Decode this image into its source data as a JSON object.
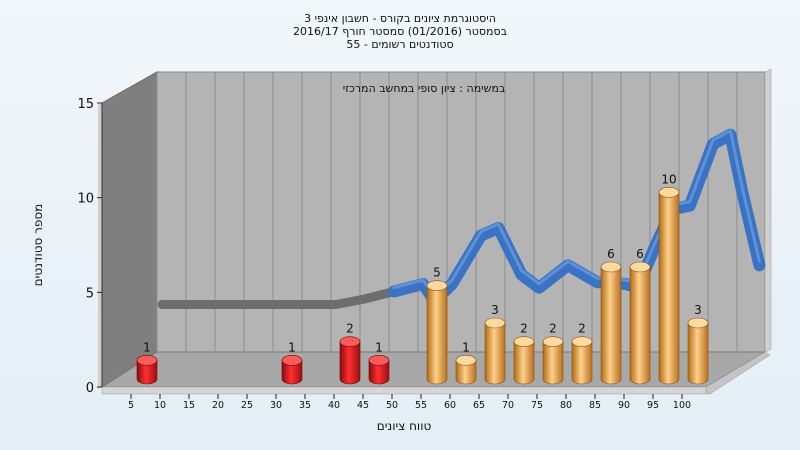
{
  "title_lines": [
    "היסטוגרמת ציונים בקורס - חשבון אינפי 3",
    "בסמסטר  (01/2016)  סמסטר חורף  2016/17",
    "סטודנטים רשומים - 55"
  ],
  "chart_data": {
    "type": "bar",
    "annotation": "במשימה : ציון סופי במחשב המרכזי",
    "xlabel": "טווח ציונים",
    "ylabel": "מספר סטודנטים",
    "ylim": [
      0,
      15
    ],
    "yticks": [
      0,
      5,
      10,
      15
    ],
    "xticks": [
      5,
      10,
      15,
      20,
      25,
      30,
      35,
      40,
      45,
      50,
      55,
      60,
      65,
      70,
      75,
      80,
      85,
      90,
      95,
      100
    ],
    "bars": [
      {
        "x": 5,
        "value": 1,
        "color": "#e02020"
      },
      {
        "x": 30,
        "value": 1,
        "color": "#e02020"
      },
      {
        "x": 40,
        "value": 2,
        "color": "#e02020"
      },
      {
        "x": 45,
        "value": 1,
        "color": "#e02020"
      },
      {
        "x": 55,
        "value": 5,
        "color": "#e8a23c"
      },
      {
        "x": 60,
        "value": 1,
        "color": "#e8a23c"
      },
      {
        "x": 65,
        "value": 3,
        "color": "#e8a23c"
      },
      {
        "x": 70,
        "value": 2,
        "color": "#e8a23c"
      },
      {
        "x": 75,
        "value": 2,
        "color": "#e8a23c"
      },
      {
        "x": 80,
        "value": 2,
        "color": "#e8a23c"
      },
      {
        "x": 85,
        "value": 6,
        "color": "#e8a23c"
      },
      {
        "x": 90,
        "value": 6,
        "color": "#e8a23c"
      },
      {
        "x": 95,
        "value": 10,
        "color": "#e8a23c"
      },
      {
        "x": 100,
        "value": 3,
        "color": "#e8a23c"
      }
    ],
    "curve": [
      {
        "x": 0,
        "y": 1.9
      },
      {
        "x": 5,
        "y": 1.9
      },
      {
        "x": 10,
        "y": 1.9
      },
      {
        "x": 15,
        "y": 1.9
      },
      {
        "x": 20,
        "y": 1.9
      },
      {
        "x": 25,
        "y": 1.9
      },
      {
        "x": 30,
        "y": 1.9
      },
      {
        "x": 35,
        "y": 2.2
      },
      {
        "x": 40,
        "y": 2.6
      },
      {
        "x": 45,
        "y": 3.0
      },
      {
        "x": 47,
        "y": 2.1
      },
      {
        "x": 50,
        "y": 3.0
      },
      {
        "x": 55,
        "y": 5.6
      },
      {
        "x": 58,
        "y": 6.0
      },
      {
        "x": 62,
        "y": 3.5
      },
      {
        "x": 65,
        "y": 2.8
      },
      {
        "x": 70,
        "y": 4.0
      },
      {
        "x": 75,
        "y": 3.1
      },
      {
        "x": 80,
        "y": 3.0
      },
      {
        "x": 82,
        "y": 2.8
      },
      {
        "x": 85,
        "y": 5.0
      },
      {
        "x": 88,
        "y": 7.0
      },
      {
        "x": 91,
        "y": 7.2
      },
      {
        "x": 95,
        "y": 10.5
      },
      {
        "x": 98,
        "y": 11.0
      },
      {
        "x": 100,
        "y": 8.0
      },
      {
        "x": 103,
        "y": 4.0
      }
    ],
    "colors": {
      "wall_back": "#b4b4b4",
      "wall_side": "#7f7f7f",
      "floor": "#a8a8a8",
      "curve_gray": "#6d6d6d",
      "curve_blue": "#3a72c4"
    }
  }
}
